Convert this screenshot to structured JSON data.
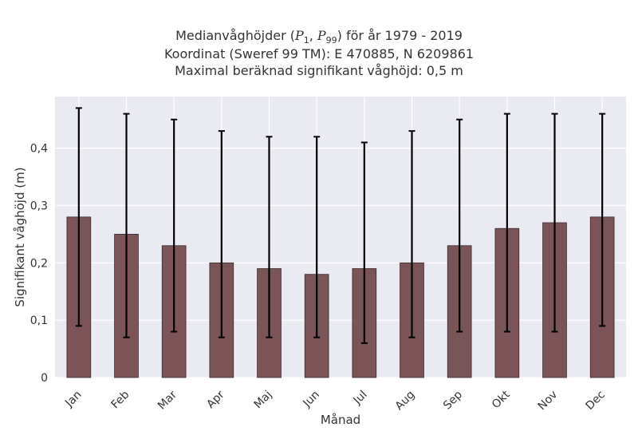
{
  "chart_data": {
    "type": "bar",
    "title_lines": [
      "Medianvåghöjder (P1, P99) för år 1979 - 2019",
      "Koordinat (Sweref 99 TM): E 470885, N 6209861",
      "Maximal beräknad signifikant våghöjd: 0,5 m"
    ],
    "title_parts": {
      "prefix": "Medianvåghöjder (",
      "p1_sym": "P",
      "p1_sub": "1",
      "sep": ", ",
      "p99_sym": "P",
      "p99_sub": "99",
      "suffix": ") för år 1979 - 2019"
    },
    "xlabel": "Månad",
    "ylabel": "Signifikant våghöjd (m)",
    "categories": [
      "Jan",
      "Feb",
      "Mar",
      "Apr",
      "Maj",
      "Jun",
      "Jul",
      "Aug",
      "Sep",
      "Okt",
      "Nov",
      "Dec"
    ],
    "values": [
      0.28,
      0.25,
      0.23,
      0.2,
      0.19,
      0.18,
      0.19,
      0.2,
      0.23,
      0.26,
      0.27,
      0.28
    ],
    "error_low": [
      0.09,
      0.07,
      0.08,
      0.07,
      0.07,
      0.07,
      0.06,
      0.07,
      0.08,
      0.08,
      0.08,
      0.09
    ],
    "error_high": [
      0.47,
      0.46,
      0.45,
      0.43,
      0.42,
      0.42,
      0.41,
      0.43,
      0.45,
      0.46,
      0.46,
      0.46
    ],
    "ylim": [
      0,
      0.49
    ],
    "yticks": [
      0,
      0.1,
      0.2,
      0.3,
      0.4
    ],
    "ytick_labels": [
      "0",
      "0,1",
      "0,2",
      "0,3",
      "0,4"
    ],
    "grid": true,
    "colors": {
      "bar": "#7a5456",
      "bar_edge": "#3d2a2b",
      "plot_bg": "#eaeaf2",
      "grid": "#ffffff",
      "error": "#000000"
    }
  }
}
